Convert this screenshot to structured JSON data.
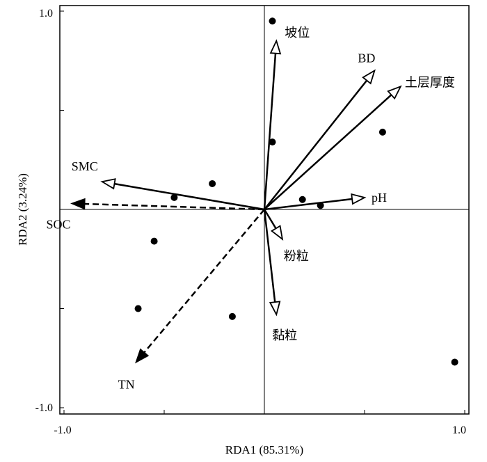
{
  "chart_data": {
    "type": "scatter",
    "xlabel": "RDA1 (85.31%)",
    "ylabel": "RDA2 (3.24%)",
    "xlim": [
      -1.0,
      1.0
    ],
    "ylim": [
      -1.0,
      1.0
    ],
    "x_tick_labels": [
      "-1.0",
      "1.0"
    ],
    "y_tick_labels": [
      "1.0",
      "-1.0"
    ],
    "grid": false,
    "points": [
      {
        "x": 0.04,
        "y": 0.95
      },
      {
        "x": 0.04,
        "y": 0.34
      },
      {
        "x": 0.59,
        "y": 0.39
      },
      {
        "x": -0.26,
        "y": 0.13
      },
      {
        "x": -0.45,
        "y": 0.06
      },
      {
        "x": 0.19,
        "y": 0.05
      },
      {
        "x": 0.28,
        "y": 0.02
      },
      {
        "x": -0.55,
        "y": -0.16
      },
      {
        "x": -0.63,
        "y": -0.5
      },
      {
        "x": -0.16,
        "y": -0.54
      },
      {
        "x": 0.95,
        "y": -0.77
      }
    ],
    "arrows": [
      {
        "label": "坡位",
        "x": 0.06,
        "y": 0.85,
        "style": "solid",
        "head": "open"
      },
      {
        "label": "BD",
        "x": 0.55,
        "y": 0.7,
        "style": "solid",
        "head": "open"
      },
      {
        "label": "土层厚度",
        "x": 0.68,
        "y": 0.62,
        "style": "solid",
        "head": "open"
      },
      {
        "label": "SMC",
        "x": -0.81,
        "y": 0.14,
        "style": "solid",
        "head": "open"
      },
      {
        "label": "pH",
        "x": 0.5,
        "y": 0.06,
        "style": "solid",
        "head": "open"
      },
      {
        "label": "粉粒",
        "x": 0.09,
        "y": -0.15,
        "style": "solid",
        "head": "open"
      },
      {
        "label": "黏粒",
        "x": 0.06,
        "y": -0.53,
        "style": "solid",
        "head": "open"
      },
      {
        "label": "SOC",
        "x": -0.96,
        "y": 0.03,
        "style": "dashed",
        "head": "filled"
      },
      {
        "label": "TN",
        "x": -0.64,
        "y": -0.77,
        "style": "dashed",
        "head": "filled"
      }
    ]
  }
}
